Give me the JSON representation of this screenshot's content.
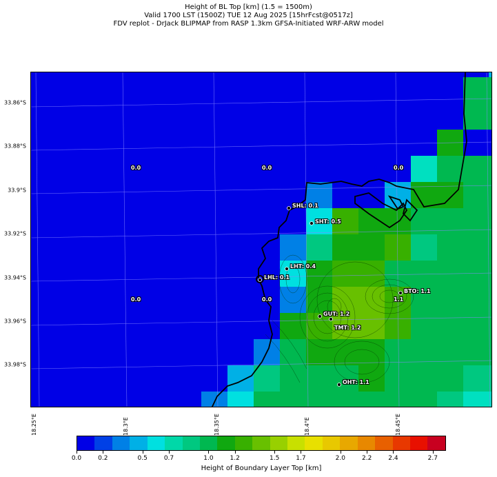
{
  "title": {
    "line1": "Height of BL Top [km] (1.5 = 1500m)",
    "line2": "Valid 1700 LST (1500Z) TUE 12 Aug 2025 [15hrFcst@0517z]",
    "line3": "FDV replot - DrJack BLIPMAP from RASP 1.3km GFSA-Initiated WRF-ARW model"
  },
  "lat_labels": [
    "33.86°S",
    "33.88°S",
    "33.9°S",
    "33.92°S",
    "33.94°S",
    "33.96°S",
    "33.98°S"
  ],
  "lon_labels": [
    "18.25°E",
    "18.3°E",
    "18.35°E",
    "18.4°E",
    "18.45°E"
  ],
  "stations": [
    {
      "code": "SHL",
      "label": "SHL: 0.1",
      "value": 0.1
    },
    {
      "code": "SHT",
      "label": "SHT: 0.5",
      "value": 0.5
    },
    {
      "code": "LHT",
      "label": "LHT: 0.4",
      "value": 0.4
    },
    {
      "code": "LHL",
      "label": "LHL: 0.1",
      "value": 0.1
    },
    {
      "code": "BTO",
      "label": "BTO: 1.1",
      "value": 1.1
    },
    {
      "code": "GUT",
      "label": "GUT: 1.2",
      "value": 1.2
    },
    {
      "code": "TMT",
      "label": "TMT: 1.2",
      "value": 1.2
    },
    {
      "code": "OHT",
      "label": "OHT: 1.1",
      "value": 1.1
    }
  ],
  "grid_values": [
    "0.0",
    "0.0",
    "0.0",
    "0.0",
    "0.0",
    "1.1"
  ],
  "colorbar": {
    "colors": [
      "#0000e6",
      "#0040e6",
      "#0080e6",
      "#00b0e6",
      "#00e0e0",
      "#00d8a8",
      "#00c880",
      "#00b850",
      "#10a810",
      "#38b000",
      "#68c000",
      "#98d000",
      "#c8e000",
      "#e8e000",
      "#e8c800",
      "#e8a800",
      "#e88800",
      "#e86000",
      "#e83800",
      "#e81000",
      "#c80020"
    ],
    "ticks": [
      "0.0",
      "0.2",
      "0.5",
      "0.7",
      "1.0",
      "1.2",
      "1.5",
      "1.7",
      "2.0",
      "2.2",
      "2.4",
      "2.7"
    ],
    "label": "Height of Boundary Layer Top [km]"
  }
}
